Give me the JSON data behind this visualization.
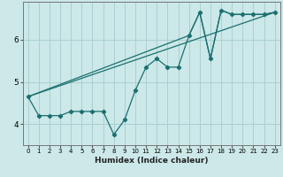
{
  "title": "",
  "xlabel": "Humidex (Indice chaleur)",
  "background_color": "#cce8e8",
  "line_color": "#1a7070",
  "grid_color": "#aad0d0",
  "xlim": [
    -0.5,
    23.5
  ],
  "ylim": [
    3.5,
    6.9
  ],
  "yticks": [
    4,
    5,
    6
  ],
  "xticks": [
    0,
    1,
    2,
    3,
    4,
    5,
    6,
    7,
    8,
    9,
    10,
    11,
    12,
    13,
    14,
    15,
    16,
    17,
    18,
    19,
    20,
    21,
    22,
    23
  ],
  "series1_x": [
    0,
    1,
    2,
    3,
    4,
    5,
    6,
    7,
    8,
    9,
    10,
    11,
    12,
    13,
    14,
    15,
    16,
    17,
    18,
    19,
    20,
    21,
    22,
    23
  ],
  "series1_y": [
    4.65,
    4.2,
    4.2,
    4.2,
    4.3,
    4.3,
    4.3,
    4.3,
    3.75,
    4.1,
    4.8,
    5.35,
    5.55,
    5.35,
    5.35,
    6.1,
    6.65,
    5.55,
    6.7,
    6.6,
    6.6,
    6.6,
    6.6,
    6.65
  ],
  "series2_x": [
    0,
    23
  ],
  "series2_y": [
    4.65,
    6.65
  ],
  "series3_x": [
    0,
    15,
    16,
    17,
    18,
    19,
    20,
    21,
    22,
    23
  ],
  "series3_y": [
    4.65,
    6.1,
    6.65,
    5.55,
    6.7,
    6.6,
    6.6,
    6.6,
    6.6,
    6.65
  ]
}
